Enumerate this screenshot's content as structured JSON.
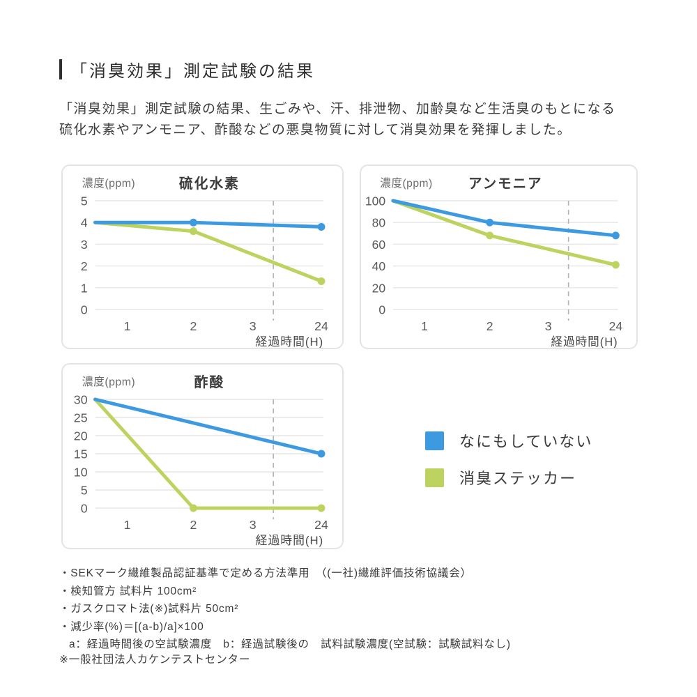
{
  "page": {
    "title": "「消臭効果」測定試験の結果",
    "intro_lines": [
      "「消臭効果」測定試験の結果、生ごみや、汗、排泄物、加齢臭など生活臭のもとになる",
      "硫化水素やアンモニア、酢酸などの悪臭物質に対して消臭効果を発揮しました。"
    ]
  },
  "colors": {
    "blue": "#3d9ae0",
    "green": "#bcd45f",
    "grid": "#e6e6e6",
    "dashed": "#b3b3b3",
    "tick_text": "#595959",
    "axis_label_text": "#6b6b6b",
    "chart_title_text": "#3b3b3b",
    "xlabel_text": "#4a4a4a"
  },
  "legend": {
    "items": [
      {
        "label": "なにもしていない",
        "color_key": "blue"
      },
      {
        "label": "消臭ステッカー",
        "color_key": "green"
      }
    ]
  },
  "chart_data": [
    {
      "type": "line",
      "title": "硫化水素",
      "ylabel": "濃度(ppm)",
      "xlabel": "経過時間(H)",
      "x_tick_labels": [
        "1",
        "2",
        "3",
        "24"
      ],
      "y_ticks": [
        5,
        4,
        3,
        2,
        1,
        0
      ],
      "ylim": [
        0,
        5
      ],
      "grid": true,
      "series": [
        {
          "name": "なにもしていない",
          "color_key": "blue",
          "points": [
            {
              "x": 0,
              "y": 4,
              "marker": false
            },
            {
              "x": 2,
              "y": 4,
              "marker": true
            },
            {
              "x": 24,
              "y": 3.8,
              "marker": true
            }
          ]
        },
        {
          "name": "消臭ステッカー",
          "color_key": "green",
          "points": [
            {
              "x": 0,
              "y": 4,
              "marker": false
            },
            {
              "x": 2,
              "y": 3.6,
              "marker": true
            },
            {
              "x": 24,
              "y": 1.3,
              "marker": true
            }
          ]
        }
      ],
      "layout": {
        "x_frac": {
          "0": 0,
          "1": 0.14,
          "2": 0.43,
          "3": 0.69,
          "24": 0.99
        },
        "dashed_guide_frac": 0.78,
        "legend_position": "outside"
      }
    },
    {
      "type": "line",
      "title": "アンモニア",
      "ylabel": "濃度(ppm)",
      "xlabel": "経過時間(H)",
      "x_tick_labels": [
        "1",
        "2",
        "3",
        "24"
      ],
      "y_ticks": [
        100,
        80,
        60,
        40,
        20,
        0
      ],
      "ylim": [
        0,
        100
      ],
      "grid": true,
      "series": [
        {
          "name": "なにもしていない",
          "color_key": "blue",
          "points": [
            {
              "x": 0,
              "y": 100,
              "marker": false
            },
            {
              "x": 2,
              "y": 80,
              "marker": true
            },
            {
              "x": 24,
              "y": 68,
              "marker": true
            }
          ]
        },
        {
          "name": "消臭ステッカー",
          "color_key": "green",
          "points": [
            {
              "x": 0,
              "y": 100,
              "marker": false
            },
            {
              "x": 2,
              "y": 68,
              "marker": true
            },
            {
              "x": 24,
              "y": 41,
              "marker": true
            }
          ]
        }
      ],
      "layout": {
        "x_frac": {
          "0": 0,
          "1": 0.14,
          "2": 0.43,
          "3": 0.69,
          "24": 0.99
        },
        "dashed_guide_frac": 0.78,
        "legend_position": "outside"
      }
    },
    {
      "type": "line",
      "title": "酢酸",
      "ylabel": "濃度(ppm)",
      "xlabel": "経過時間(H)",
      "x_tick_labels": [
        "1",
        "2",
        "3",
        "24"
      ],
      "y_ticks": [
        30,
        25,
        20,
        15,
        10,
        5,
        0
      ],
      "ylim": [
        0,
        30
      ],
      "grid": true,
      "series": [
        {
          "name": "なにもしていない",
          "color_key": "blue",
          "points": [
            {
              "x": 0,
              "y": 30,
              "marker": false
            },
            {
              "x": 24,
              "y": 15,
              "marker": true
            }
          ]
        },
        {
          "name": "消臭ステッカー",
          "color_key": "green",
          "points": [
            {
              "x": 0,
              "y": 30,
              "marker": false
            },
            {
              "x": 2,
              "y": 0,
              "marker": true
            },
            {
              "x": 24,
              "y": 0,
              "marker": true
            }
          ]
        }
      ],
      "layout": {
        "x_frac": {
          "0": 0,
          "1": 0.14,
          "2": 0.43,
          "3": 0.69,
          "24": 0.99
        },
        "dashed_guide_frac": 0.78,
        "legend_position": "outside"
      }
    }
  ],
  "footnotes": [
    "・SEKマーク繊維製品認証基準で定める方法準用　（(一社)繊維評価技術協議会）",
    "・検知管方 試料片 100cm²",
    "・ガスクロマト法(※)試料片 50cm²",
    "・減少率(%)＝[(a-b)/a]×100",
    "a：経過時間後の空試験濃度　b：経過試験後の　試料試験濃度(空試験：試験試料なし)"
  ],
  "source_note": "※一般社団法人カケンテストセンター"
}
